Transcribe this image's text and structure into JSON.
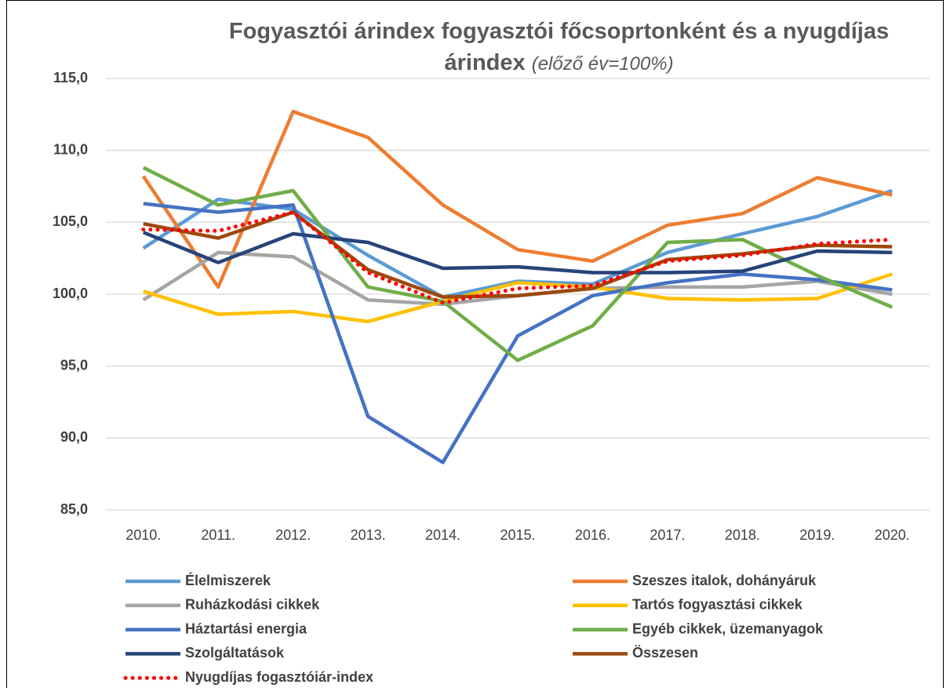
{
  "chart_data": {
    "type": "line",
    "title": "Fogyasztói árindex fogyasztói főcsoprtonként és a nyugdíjas árindex",
    "subtitle": "(előző év=100%)",
    "categories": [
      "2010.",
      "2011.",
      "2012.",
      "2013.",
      "2014.",
      "2015.",
      "2016.",
      "2017.",
      "2018.",
      "2019.",
      "2020."
    ],
    "ylim": [
      85,
      115
    ],
    "yticks": [
      {
        "value": 85,
        "label": "85,0"
      },
      {
        "value": 90,
        "label": "90,0"
      },
      {
        "value": 95,
        "label": "95,0"
      },
      {
        "value": 100,
        "label": "100,0"
      },
      {
        "value": 105,
        "label": "105,0"
      },
      {
        "value": 110,
        "label": "110,0"
      },
      {
        "value": 115,
        "label": "115,0"
      }
    ],
    "grid": true,
    "legend": "bottom",
    "series": [
      {
        "name": "Élelmiszerek",
        "color": "#5b9bd5",
        "values": [
          103.2,
          106.6,
          105.9,
          102.7,
          99.8,
          100.9,
          100.7,
          102.9,
          104.2,
          105.4,
          107.2
        ]
      },
      {
        "name": "Szeszes italok, dohányáruk",
        "color": "#ed7d31",
        "values": [
          108.2,
          100.5,
          112.7,
          110.9,
          106.2,
          103.1,
          102.3,
          104.8,
          105.6,
          108.1,
          106.9
        ]
      },
      {
        "name": "Ruházkodási cikkek",
        "color": "#a5a5a5",
        "values": [
          99.6,
          102.9,
          102.6,
          99.6,
          99.3,
          99.9,
          100.4,
          100.5,
          100.5,
          100.9,
          100.0
        ]
      },
      {
        "name": "Tartós fogyasztási cikkek",
        "color": "#ffc000",
        "values": [
          100.2,
          98.6,
          98.8,
          98.1,
          99.5,
          100.8,
          100.5,
          99.7,
          99.6,
          99.7,
          101.4
        ]
      },
      {
        "name": "Háztartási energia",
        "color": "#4472c4",
        "values": [
          106.3,
          105.7,
          106.2,
          91.5,
          88.3,
          97.1,
          99.9,
          100.8,
          101.4,
          101.0,
          100.3
        ]
      },
      {
        "name": "Egyéb cikkek, üzemanyagok",
        "color": "#70ad47",
        "values": [
          108.8,
          106.2,
          107.2,
          100.5,
          99.5,
          95.4,
          97.8,
          103.6,
          103.8,
          101.3,
          99.1
        ]
      },
      {
        "name": "Szolgáltatások",
        "color": "#264478",
        "values": [
          104.3,
          102.2,
          104.2,
          103.6,
          101.8,
          101.9,
          101.5,
          101.5,
          101.6,
          103.0,
          102.9
        ]
      },
      {
        "name": "Összesen",
        "color": "#9e480e",
        "values": [
          104.9,
          103.9,
          105.7,
          101.7,
          99.8,
          99.9,
          100.4,
          102.4,
          102.8,
          103.4,
          103.3
        ]
      },
      {
        "name": "Nyugdíjas fogasztóiár-index",
        "color": "#ff0000",
        "style": "dotted",
        "values": [
          104.5,
          104.4,
          105.7,
          101.5,
          99.4,
          100.4,
          100.6,
          102.3,
          102.7,
          103.5,
          103.8
        ]
      }
    ]
  }
}
